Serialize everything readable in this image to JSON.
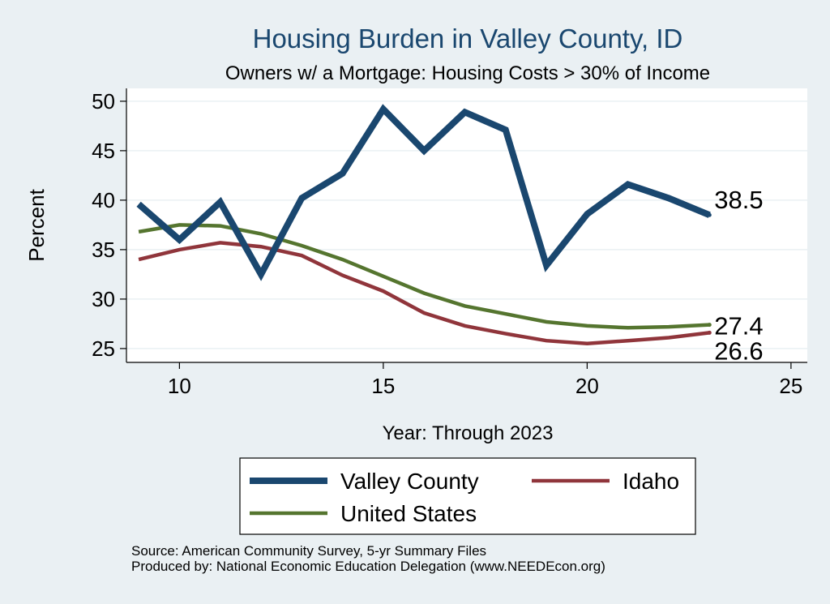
{
  "chart_data": {
    "type": "line",
    "title": "Housing Burden in Valley County, ID",
    "subtitle": "Owners w/ a Mortgage: Housing Costs > 30% of Income",
    "xlabel": "Year: Through 2023",
    "ylabel": "Percent",
    "xlim": [
      8.7,
      25.4
    ],
    "ylim": [
      23.6,
      51.3
    ],
    "xticks": [
      10,
      15,
      20,
      25
    ],
    "yticks": [
      25,
      30,
      35,
      40,
      45,
      50
    ],
    "grid": true,
    "legend_position": "bottom",
    "x": [
      9,
      10,
      11,
      12,
      13,
      14,
      15,
      16,
      17,
      18,
      19,
      20,
      21,
      22,
      23
    ],
    "series": [
      {
        "name": "Valley County",
        "color": "#1a476f",
        "values": [
          39.6,
          36.0,
          39.8,
          32.5,
          40.2,
          42.7,
          49.2,
          45.0,
          48.9,
          47.1,
          33.4,
          38.6,
          41.6,
          40.2,
          38.5
        ],
        "end_label": "38.5"
      },
      {
        "name": "Idaho",
        "color": "#90353b",
        "values": [
          34.0,
          35.0,
          35.7,
          35.3,
          34.4,
          32.4,
          30.8,
          28.6,
          27.3,
          26.5,
          25.8,
          25.5,
          25.8,
          26.1,
          26.6
        ],
        "end_label": "26.6"
      },
      {
        "name": "United States",
        "color": "#55752f",
        "values": [
          36.8,
          37.5,
          37.4,
          36.6,
          35.4,
          34.0,
          32.3,
          30.6,
          29.3,
          28.5,
          27.7,
          27.3,
          27.1,
          27.2,
          27.4
        ],
        "end_label": "27.4"
      }
    ]
  },
  "notes": {
    "source": "Source: American Community Survey, 5-yr Summary Files",
    "producer": "Produced by: National Economic Education Delegation (www.NEEDEcon.org)"
  }
}
